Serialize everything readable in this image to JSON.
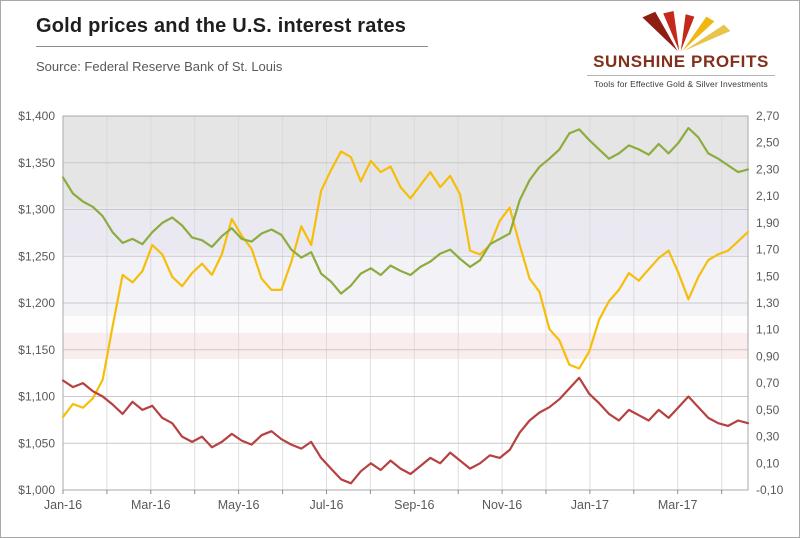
{
  "header": {
    "title": "Gold prices and the U.S. interest rates",
    "source": "Source: Federal Reserve Bank of St. Louis"
  },
  "logo": {
    "name": "SUNSHINE PROFITS",
    "tagline": "Tools for Effective Gold & Silver Investments",
    "colors": {
      "dark_red": "#8E1D12",
      "red": "#C42A1C",
      "gold": "#EFB70F",
      "light_gold": "#E9C44D",
      "text": "#82301b"
    }
  },
  "chart_data": {
    "type": "line",
    "title": "Gold prices and the U.S. interest rates",
    "grid": true,
    "legend": "none",
    "x_axis": {
      "tick_labels": [
        "Jan-16",
        "Mar-16",
        "May-16",
        "Jul-16",
        "Sep-16",
        "Nov-16",
        "Jan-17",
        "Mar-17"
      ],
      "tick_month_positions": [
        0,
        2,
        4,
        6,
        8,
        10,
        12,
        14
      ],
      "months_span": 15.6
    },
    "y_left": {
      "min": 1000,
      "max": 1400,
      "labels": [
        "$1,400",
        "$1,350",
        "$1,300",
        "$1,250",
        "$1,200",
        "$1,150",
        "$1,100",
        "$1,050",
        "$1,000"
      ]
    },
    "y_right": {
      "min": -0.1,
      "max": 2.7,
      "labels": [
        "2,70",
        "2,50",
        "2,30",
        "2,10",
        "1,90",
        "1,70",
        "1,50",
        "1,30",
        "1,10",
        "0,90",
        "0,70",
        "0,50",
        "0,30",
        "0,10",
        "-0,10"
      ]
    },
    "plot_bands": [
      {
        "from": 1400,
        "to": 1302,
        "color": "#e6e5e6"
      },
      {
        "from": 1302,
        "to": 1252,
        "color": "#eae9f2"
      },
      {
        "from": 1252,
        "to": 1186,
        "color": "#f3f2f7"
      },
      {
        "from": 1186,
        "to": 1168,
        "color": "#fdfdfe"
      },
      {
        "from": 1168,
        "to": 1140,
        "color": "#f9edee"
      },
      {
        "from": 1140,
        "to": 1000,
        "color": "#ffffff"
      }
    ],
    "series": [
      {
        "name": "Gold price (yellow, left axis, USD)",
        "axis": "left",
        "color": "#F6BE0C",
        "values": [
          1078,
          1092,
          1088,
          1098,
          1118,
          1175,
          1230,
          1222,
          1234,
          1262,
          1252,
          1228,
          1218,
          1232,
          1242,
          1230,
          1252,
          1290,
          1272,
          1258,
          1226,
          1214,
          1214,
          1244,
          1282,
          1262,
          1320,
          1342,
          1362,
          1356,
          1330,
          1352,
          1340,
          1346,
          1324,
          1312,
          1326,
          1340,
          1324,
          1336,
          1316,
          1256,
          1252,
          1262,
          1288,
          1302,
          1262,
          1226,
          1212,
          1172,
          1160,
          1134,
          1130,
          1148,
          1182,
          1202,
          1214,
          1232,
          1224,
          1236,
          1248,
          1256,
          1232,
          1204,
          1228,
          1246,
          1252,
          1256,
          1266,
          1276
        ]
      },
      {
        "name": "Interest rate (green, right axis, %)",
        "axis": "right",
        "color": "#8CAC3E",
        "values": [
          2.24,
          2.12,
          2.06,
          2.02,
          1.95,
          1.83,
          1.75,
          1.78,
          1.74,
          1.83,
          1.9,
          1.94,
          1.88,
          1.79,
          1.77,
          1.72,
          1.8,
          1.86,
          1.78,
          1.76,
          1.82,
          1.85,
          1.81,
          1.7,
          1.64,
          1.68,
          1.52,
          1.46,
          1.37,
          1.43,
          1.52,
          1.56,
          1.51,
          1.58,
          1.54,
          1.51,
          1.57,
          1.61,
          1.67,
          1.7,
          1.63,
          1.57,
          1.62,
          1.74,
          1.78,
          1.82,
          2.07,
          2.22,
          2.32,
          2.38,
          2.45,
          2.57,
          2.6,
          2.52,
          2.45,
          2.38,
          2.42,
          2.48,
          2.45,
          2.41,
          2.49,
          2.42,
          2.5,
          2.61,
          2.54,
          2.42,
          2.38,
          2.33,
          2.28,
          2.3
        ]
      },
      {
        "name": "Interest rate (red, right axis, %)",
        "axis": "right",
        "color": "#B74040",
        "values": [
          0.72,
          0.67,
          0.7,
          0.64,
          0.6,
          0.54,
          0.47,
          0.56,
          0.5,
          0.53,
          0.44,
          0.4,
          0.3,
          0.26,
          0.3,
          0.22,
          0.26,
          0.32,
          0.27,
          0.24,
          0.31,
          0.34,
          0.28,
          0.24,
          0.21,
          0.26,
          0.14,
          0.06,
          -0.02,
          -0.05,
          0.04,
          0.1,
          0.05,
          0.12,
          0.06,
          0.02,
          0.08,
          0.14,
          0.1,
          0.18,
          0.12,
          0.06,
          0.1,
          0.16,
          0.14,
          0.2,
          0.33,
          0.42,
          0.48,
          0.52,
          0.58,
          0.66,
          0.74,
          0.62,
          0.55,
          0.47,
          0.42,
          0.5,
          0.46,
          0.42,
          0.5,
          0.44,
          0.52,
          0.6,
          0.52,
          0.44,
          0.4,
          0.38,
          0.42,
          0.4
        ]
      }
    ]
  }
}
